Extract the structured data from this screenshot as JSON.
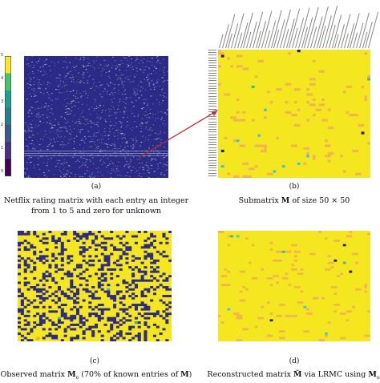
{
  "panels": {
    "a": {
      "tag": "(a)",
      "caption_line1": "Netflix rating matrix with each entry an integer",
      "caption_line2": "from 1 to 5 and zero for unknown",
      "colorbar": {
        "ticks": [
          "5",
          "4",
          "3",
          "2",
          "1",
          "0"
        ],
        "colors": [
          "#fde725",
          "#4ac16d",
          "#1fa187",
          "#277f8e",
          "#365c8d",
          "#46327e",
          "#440154"
        ]
      }
    },
    "b": {
      "tag": "(b)",
      "caption": "Submatrix M of size 50 × 50",
      "caption_pre": "Submatrix ",
      "caption_bold": "M",
      "caption_post": " of size 50  ×  50"
    },
    "c": {
      "tag": "(c)",
      "caption_pre": "Observed matrix ",
      "caption_bold": "M",
      "caption_sub": "o",
      "caption_post": " (70% of known entries of ",
      "caption_bold2": "M",
      "caption_end": ")"
    },
    "d": {
      "tag": "(d)",
      "caption_pre": "Reconstructed matrix ",
      "caption_bold": "M̃",
      "caption_mid": " via LRMC using ",
      "caption_bold2": "M",
      "caption_sub": "o"
    }
  },
  "colors": {
    "yellow": "#f5e71f",
    "orange": "#f2b44e",
    "navy": "#2b2a86",
    "dark": "#1a1a4a",
    "teal": "#38b6a3",
    "cyan": "#47c0e6",
    "arrow": "#c0262c"
  }
}
